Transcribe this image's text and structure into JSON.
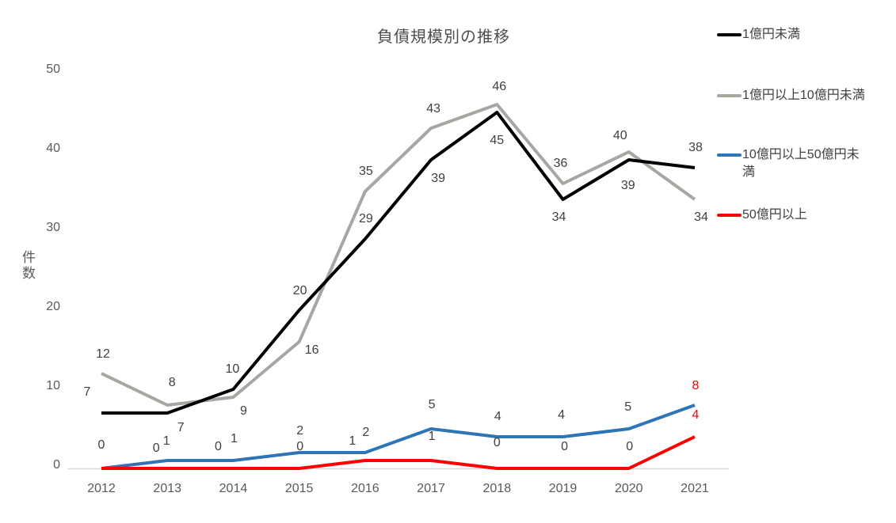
{
  "chart_data": {
    "type": "line",
    "title": "負債規模別の推移",
    "xlabel": "",
    "ylabel": "件数",
    "categories": [
      "2012",
      "2013",
      "2014",
      "2015",
      "2016",
      "2017",
      "2018",
      "2019",
      "2020",
      "2021"
    ],
    "yticks": [
      0,
      10,
      20,
      30,
      40,
      50
    ],
    "ylim": [
      0,
      50
    ],
    "grid": false,
    "legend_position": "right",
    "axis_color": "#d9d9d9",
    "tick_color": "#595959",
    "label_color": "#404040",
    "highlight_label_color": "#ff0000",
    "series": [
      {
        "name": "1億円未満",
        "color": "#000000",
        "values": [
          7,
          7,
          10,
          20,
          29,
          39,
          45,
          34,
          39,
          38
        ]
      },
      {
        "name": "1億円以上10億円未満",
        "color": "#a9a6a2",
        "values": [
          12,
          8,
          9,
          16,
          35,
          43,
          46,
          36,
          40,
          34
        ]
      },
      {
        "name": "10億円以上50億円未満",
        "color": "#2e75b6",
        "values": [
          0,
          1,
          1,
          2,
          2,
          5,
          4,
          4,
          5,
          8
        ]
      },
      {
        "name": "50億円以上",
        "color": "#ff0000",
        "values": [
          0,
          0,
          0,
          0,
          1,
          1,
          0,
          0,
          0,
          4
        ]
      }
    ]
  }
}
